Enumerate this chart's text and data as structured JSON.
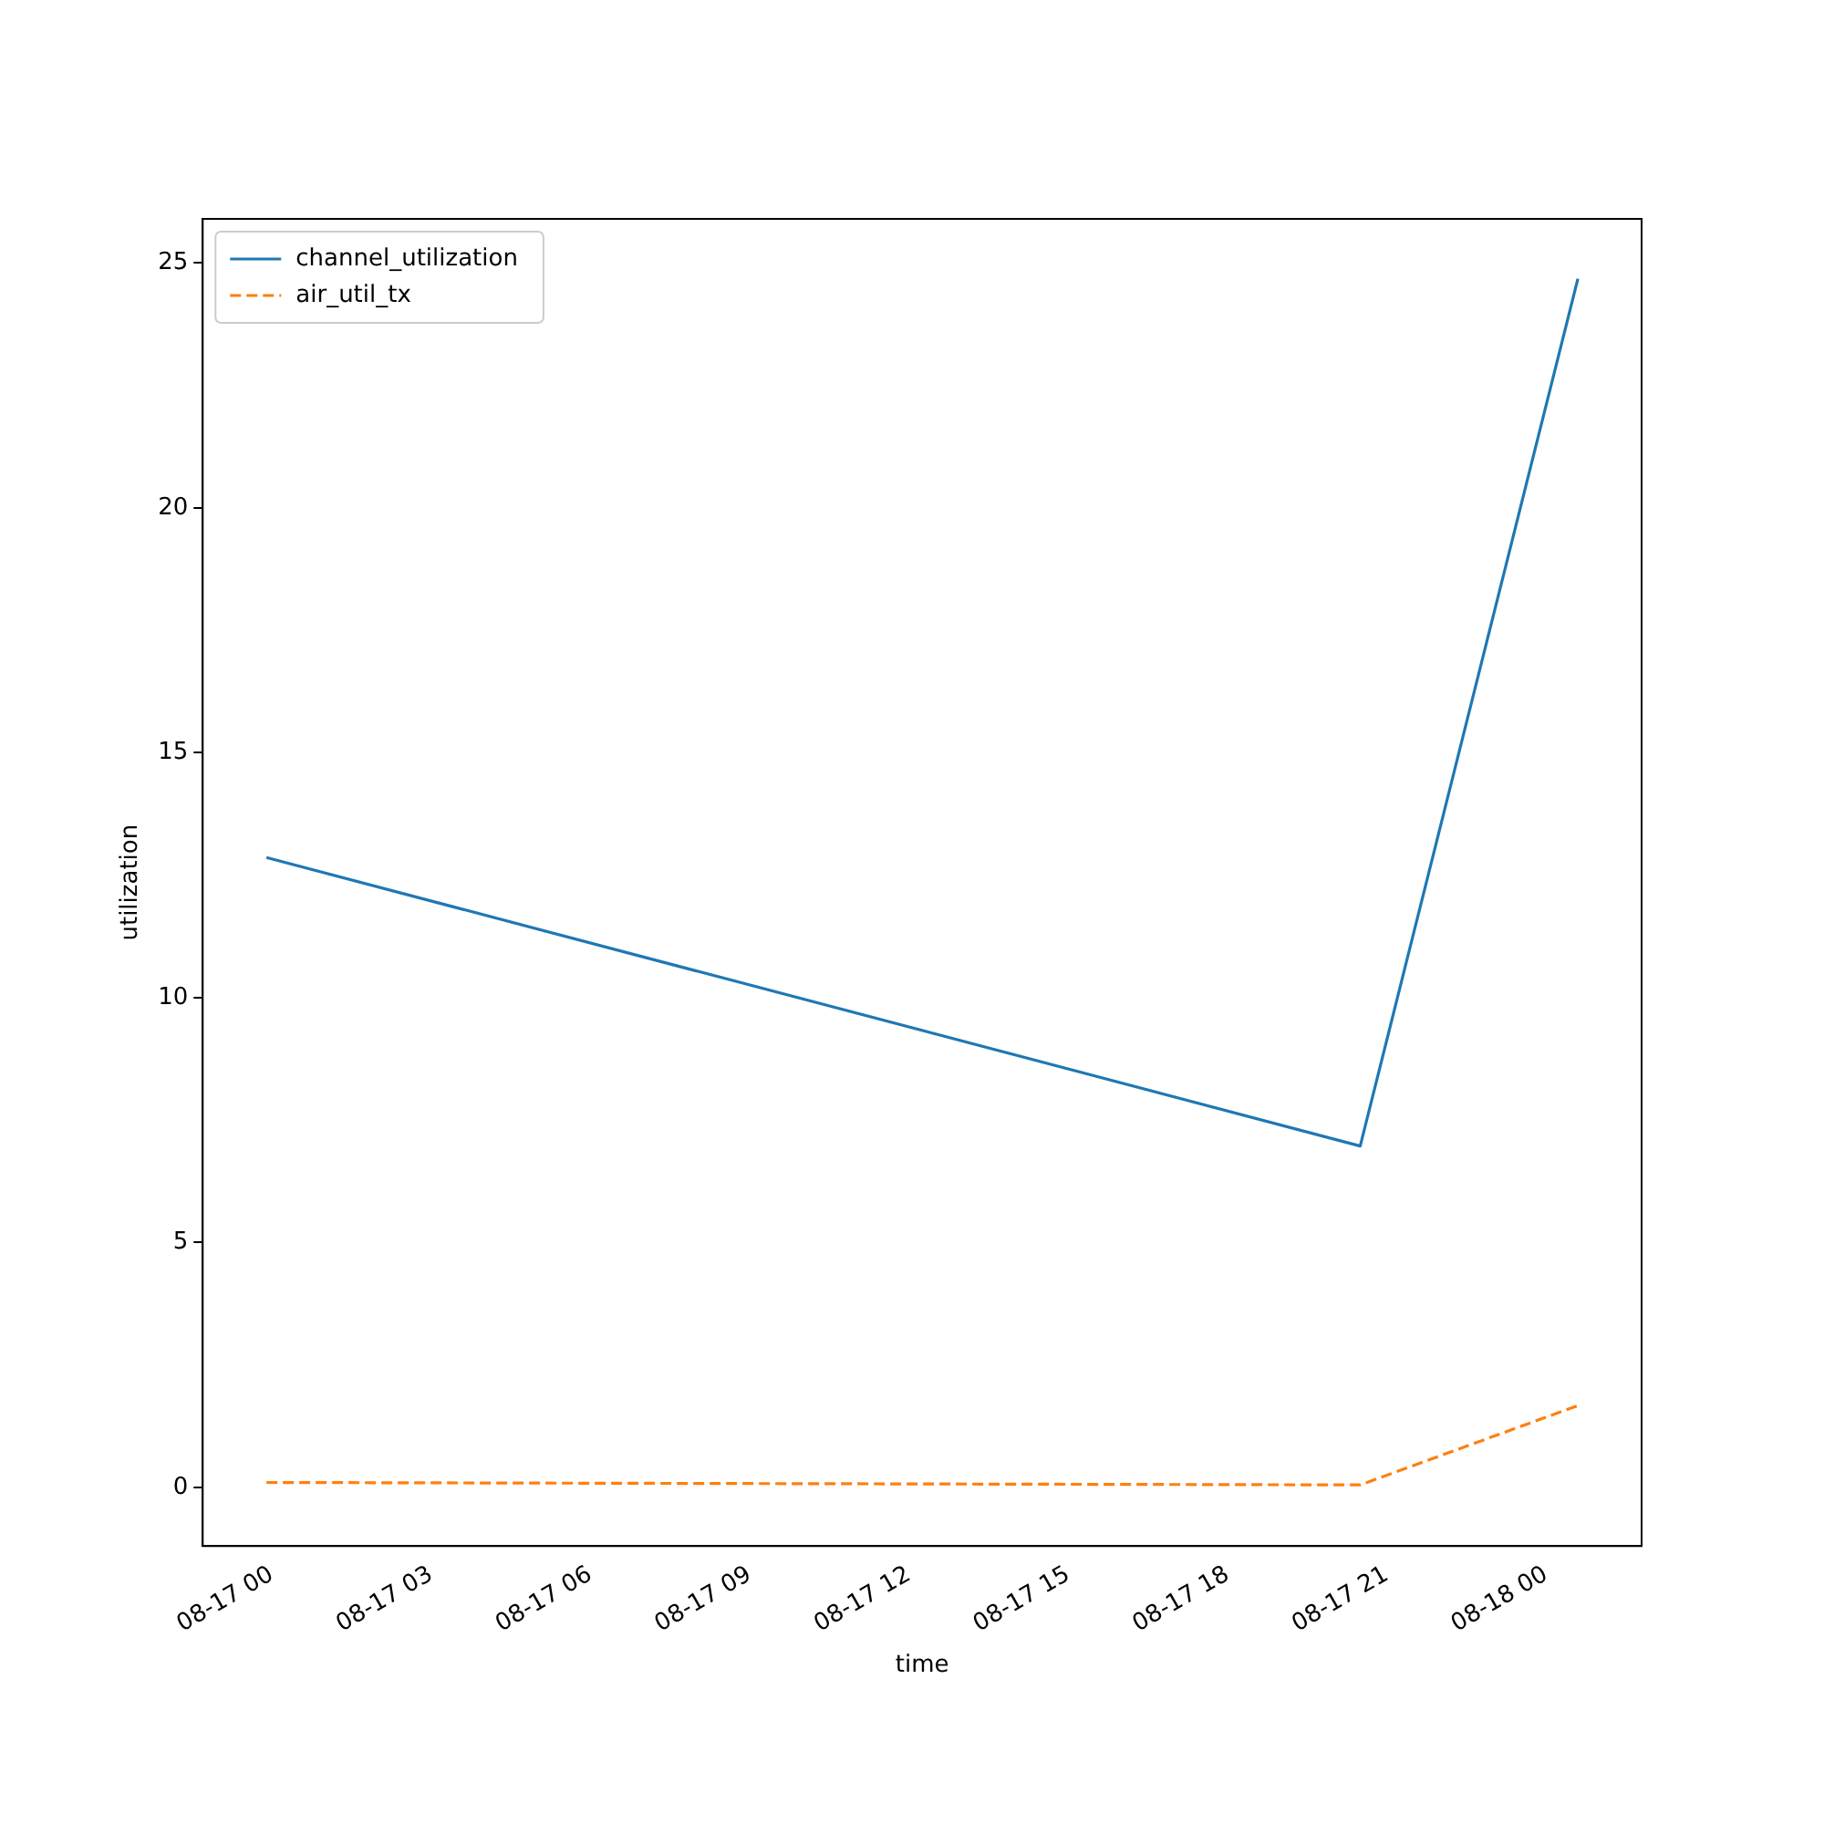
{
  "chart_data": {
    "type": "line",
    "xlabel": "time",
    "ylabel": "utilization",
    "x": [
      "--08-16T23:54",
      "--08-17T20:30",
      "--08-18T00:36"
    ],
    "series": [
      {
        "name": "channel_utilization",
        "color": "#1f77b4",
        "values": [
          12.86,
          6.97,
          24.68
        ],
        "line_style": "solid"
      },
      {
        "name": "air_util_tx",
        "color": "#ff7f0e",
        "values": [
          0.1,
          0.05,
          1.67
        ],
        "line_style": "dashed"
      }
    ],
    "xlim": [
      "--08-16T22:42",
      "--08-18T01:48"
    ],
    "ylim": [
      -1.2,
      25.9
    ],
    "xticks": [
      {
        "value": "--08-17T00:00",
        "label": "08-17 00"
      },
      {
        "value": "--08-17T03:00",
        "label": "08-17 03"
      },
      {
        "value": "--08-17T06:00",
        "label": "08-17 06"
      },
      {
        "value": "--08-17T09:00",
        "label": "08-17 09"
      },
      {
        "value": "--08-17T12:00",
        "label": "08-17 12"
      },
      {
        "value": "--08-17T15:00",
        "label": "08-17 15"
      },
      {
        "value": "--08-17T18:00",
        "label": "08-17 18"
      },
      {
        "value": "--08-17T21:00",
        "label": "08-17 21"
      },
      {
        "value": "--08-18T00:00",
        "label": "08-18 00"
      }
    ],
    "yticks": [
      0,
      5,
      10,
      15,
      20,
      25
    ],
    "legend": "top left",
    "grid": false,
    "marker": "none"
  }
}
